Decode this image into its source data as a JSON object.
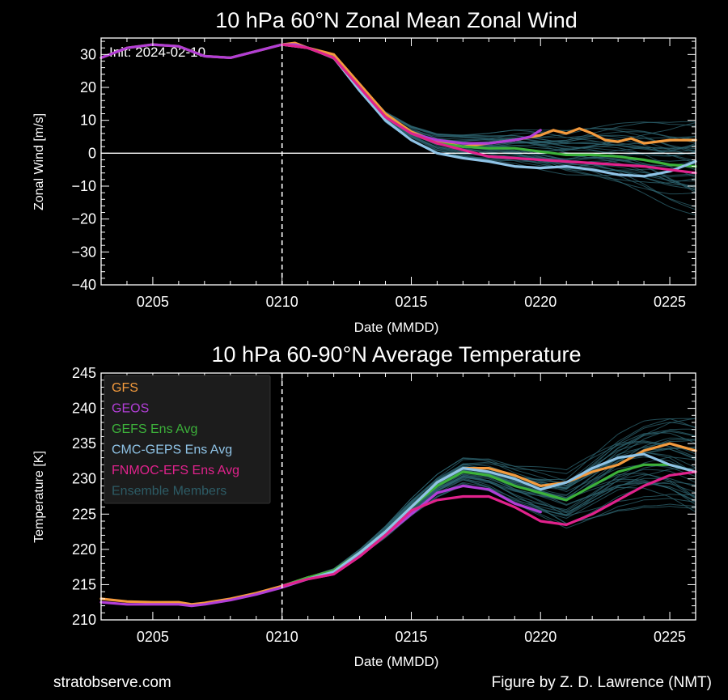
{
  "footer": {
    "left": "stratobserve.com",
    "right": "Figure by Z. D. Lawrence (NMT)"
  },
  "chart_data": [
    {
      "type": "line",
      "title": "10 hPa  60°N   Zonal Mean Zonal Wind",
      "xlabel": "Date (MMDD)",
      "ylabel": "Zonal  Wind   [m/s]",
      "annotation": "Init: 2024-02-10",
      "init_marker_date": "0210",
      "zero_line": true,
      "xlim": [
        "0203",
        "0226"
      ],
      "xticks": [
        "0205",
        "0210",
        "0215",
        "0220",
        "0225"
      ],
      "ylim": [
        -40,
        35
      ],
      "yticks": [
        -40,
        -30,
        -20,
        -10,
        0,
        10,
        20,
        30
      ],
      "series": [
        {
          "name": "GFS",
          "color": "#f39a3d",
          "points": [
            [
              3,
              29
            ],
            [
              4,
              32
            ],
            [
              5,
              33
            ],
            [
              6,
              32.5
            ],
            [
              7,
              29.5
            ],
            [
              8,
              29
            ],
            [
              9,
              31
            ],
            [
              10,
              33
            ],
            [
              10.5,
              33.5
            ],
            [
              11,
              32
            ],
            [
              12,
              30
            ],
            [
              13,
              21
            ],
            [
              14,
              12
            ],
            [
              15,
              6.5
            ],
            [
              16,
              3.5
            ],
            [
              17,
              2
            ],
            [
              18,
              3
            ],
            [
              19,
              4
            ],
            [
              20,
              5.5
            ],
            [
              20.5,
              7
            ],
            [
              21,
              6
            ],
            [
              21.5,
              7.5
            ],
            [
              22,
              6
            ],
            [
              22.5,
              4
            ],
            [
              23,
              3.5
            ],
            [
              23.5,
              4.5
            ],
            [
              24,
              3
            ],
            [
              25,
              4
            ],
            [
              26,
              4
            ]
          ]
        },
        {
          "name": "GEOS",
          "color": "#b13ed6",
          "points": [
            [
              3,
              29
            ],
            [
              4,
              32
            ],
            [
              5,
              33
            ],
            [
              6,
              32.5
            ],
            [
              7,
              29.5
            ],
            [
              8,
              29
            ],
            [
              9,
              31
            ],
            [
              10,
              33
            ],
            [
              10.5,
              33
            ],
            [
              11,
              32
            ],
            [
              12,
              29
            ],
            [
              13,
              20
            ],
            [
              14,
              11
            ],
            [
              15,
              6
            ],
            [
              16,
              4
            ],
            [
              17,
              3
            ],
            [
              18,
              3
            ],
            [
              19,
              4
            ],
            [
              19.6,
              5
            ],
            [
              20,
              7
            ]
          ]
        },
        {
          "name": "GEFS Ens Avg",
          "color": "#3cb13a",
          "points": [
            [
              10,
              33
            ],
            [
              11,
              32
            ],
            [
              12,
              29
            ],
            [
              13,
              20
            ],
            [
              14,
              11
            ],
            [
              15,
              6
            ],
            [
              16,
              3
            ],
            [
              17,
              2
            ],
            [
              18,
              1.5
            ],
            [
              19,
              1.5
            ],
            [
              20,
              0.5
            ],
            [
              21,
              -0.5
            ],
            [
              22,
              -0.5
            ],
            [
              23,
              -1
            ],
            [
              24,
              -2
            ],
            [
              25,
              -3.5
            ],
            [
              26,
              -4
            ]
          ]
        },
        {
          "name": "CMC-GEPS Ens Avg",
          "color": "#8fc3e6",
          "points": [
            [
              10,
              33
            ],
            [
              11,
              32
            ],
            [
              12,
              29
            ],
            [
              13,
              19
            ],
            [
              14,
              10
            ],
            [
              15,
              4
            ],
            [
              16,
              0
            ],
            [
              17,
              -1.5
            ],
            [
              18,
              -2.5
            ],
            [
              19,
              -4
            ],
            [
              20,
              -4.5
            ],
            [
              21,
              -4
            ],
            [
              22,
              -5
            ],
            [
              23,
              -6.5
            ],
            [
              24,
              -7
            ],
            [
              25,
              -5.5
            ],
            [
              26,
              -2.5
            ]
          ]
        },
        {
          "name": "FNMOC-EFS Ens Avg",
          "color": "#e0228c",
          "points": [
            [
              10,
              33
            ],
            [
              11,
              32
            ],
            [
              12,
              29
            ],
            [
              13,
              20
            ],
            [
              14,
              11
            ],
            [
              15,
              6
            ],
            [
              16,
              3
            ],
            [
              17,
              1
            ],
            [
              18,
              -1
            ],
            [
              19,
              -1.5
            ],
            [
              20,
              -2
            ],
            [
              21,
              -2.5
            ],
            [
              22,
              -3
            ],
            [
              23,
              -3.5
            ],
            [
              24,
              -4
            ],
            [
              25,
              -5
            ],
            [
              26,
              -6
            ]
          ]
        }
      ]
    },
    {
      "type": "line",
      "title": "10 hPa  60-90°N Average Temperature",
      "xlabel": "Date (MMDD)",
      "ylabel": "Temperature   [K]",
      "init_marker_date": "0210",
      "legend_position": "top-left",
      "xlim": [
        "0203",
        "0226"
      ],
      "xticks": [
        "0205",
        "0210",
        "0215",
        "0220",
        "0225"
      ],
      "ylim": [
        210,
        245
      ],
      "yticks": [
        210,
        215,
        220,
        225,
        230,
        235,
        240,
        245
      ],
      "legend": [
        {
          "label": "GFS",
          "color": "#f39a3d"
        },
        {
          "label": "GEOS",
          "color": "#b13ed6"
        },
        {
          "label": "GEFS Ens Avg",
          "color": "#3cb13a"
        },
        {
          "label": "CMC-GEPS Ens Avg",
          "color": "#8fc3e6"
        },
        {
          "label": "FNMOC-EFS Ens Avg",
          "color": "#e0228c"
        },
        {
          "label": "Ensemble Members",
          "color": "#2d5c66"
        }
      ],
      "series": [
        {
          "name": "GFS",
          "color": "#f39a3d",
          "points": [
            [
              3,
              213
            ],
            [
              4,
              212.6
            ],
            [
              5,
              212.5
            ],
            [
              6,
              212.5
            ],
            [
              6.5,
              212.2
            ],
            [
              7,
              212.4
            ],
            [
              8,
              213
            ],
            [
              9,
              213.8
            ],
            [
              10,
              214.8
            ],
            [
              11,
              216
            ],
            [
              12,
              217
            ],
            [
              13,
              219.5
            ],
            [
              14,
              222.5
            ],
            [
              15,
              226
            ],
            [
              16,
              229.5
            ],
            [
              17,
              231.5
            ],
            [
              18,
              231.5
            ],
            [
              19,
              230.5
            ],
            [
              20,
              229
            ],
            [
              21,
              229.5
            ],
            [
              22,
              231
            ],
            [
              23,
              232
            ],
            [
              24,
              234
            ],
            [
              25,
              235
            ],
            [
              26,
              234
            ]
          ]
        },
        {
          "name": "GEOS",
          "color": "#b13ed6",
          "points": [
            [
              3,
              212.5
            ],
            [
              4,
              212.2
            ],
            [
              5,
              212.2
            ],
            [
              6,
              212.2
            ],
            [
              6.5,
              212
            ],
            [
              7,
              212.2
            ],
            [
              8,
              212.8
            ],
            [
              9,
              213.6
            ],
            [
              10,
              214.6
            ],
            [
              11,
              215.8
            ],
            [
              12,
              216.5
            ],
            [
              13,
              219
            ],
            [
              14,
              222
            ],
            [
              15,
              225
            ],
            [
              16,
              228
            ],
            [
              17,
              229
            ],
            [
              18,
              228.5
            ],
            [
              19,
              226.5
            ],
            [
              20,
              225.3
            ]
          ]
        },
        {
          "name": "GEFS Ens Avg",
          "color": "#3cb13a",
          "points": [
            [
              10,
              214.8
            ],
            [
              11,
              216
            ],
            [
              12,
              217
            ],
            [
              13,
              219.5
            ],
            [
              14,
              222.5
            ],
            [
              15,
              226
            ],
            [
              16,
              229
            ],
            [
              17,
              231
            ],
            [
              18,
              230.5
            ],
            [
              19,
              229
            ],
            [
              20,
              228
            ],
            [
              21,
              227
            ],
            [
              22,
              229
            ],
            [
              23,
              231
            ],
            [
              24,
              232
            ],
            [
              25,
              232
            ],
            [
              26,
              231
            ]
          ]
        },
        {
          "name": "CMC-GEPS Ens Avg",
          "color": "#8fc3e6",
          "points": [
            [
              10,
              214.8
            ],
            [
              11,
              215.8
            ],
            [
              12,
              216.8
            ],
            [
              13,
              219.5
            ],
            [
              14,
              222.5
            ],
            [
              15,
              226
            ],
            [
              16,
              229.5
            ],
            [
              17,
              231.5
            ],
            [
              18,
              231
            ],
            [
              19,
              230
            ],
            [
              20,
              228.5
            ],
            [
              21,
              229.5
            ],
            [
              22,
              231.5
            ],
            [
              23,
              233
            ],
            [
              24,
              233.5
            ],
            [
              25,
              232
            ],
            [
              26,
              231
            ]
          ]
        },
        {
          "name": "FNMOC-EFS Ens Avg",
          "color": "#e0228c",
          "points": [
            [
              10,
              214.8
            ],
            [
              11,
              215.8
            ],
            [
              12,
              216.5
            ],
            [
              13,
              219
            ],
            [
              14,
              222
            ],
            [
              15,
              225.5
            ],
            [
              16,
              227
            ],
            [
              17,
              227.5
            ],
            [
              18,
              227.5
            ],
            [
              19,
              226
            ],
            [
              20,
              224
            ],
            [
              21,
              223.5
            ],
            [
              22,
              225
            ],
            [
              23,
              227
            ],
            [
              24,
              229
            ],
            [
              25,
              230.5
            ],
            [
              26,
              231
            ]
          ]
        }
      ]
    }
  ]
}
